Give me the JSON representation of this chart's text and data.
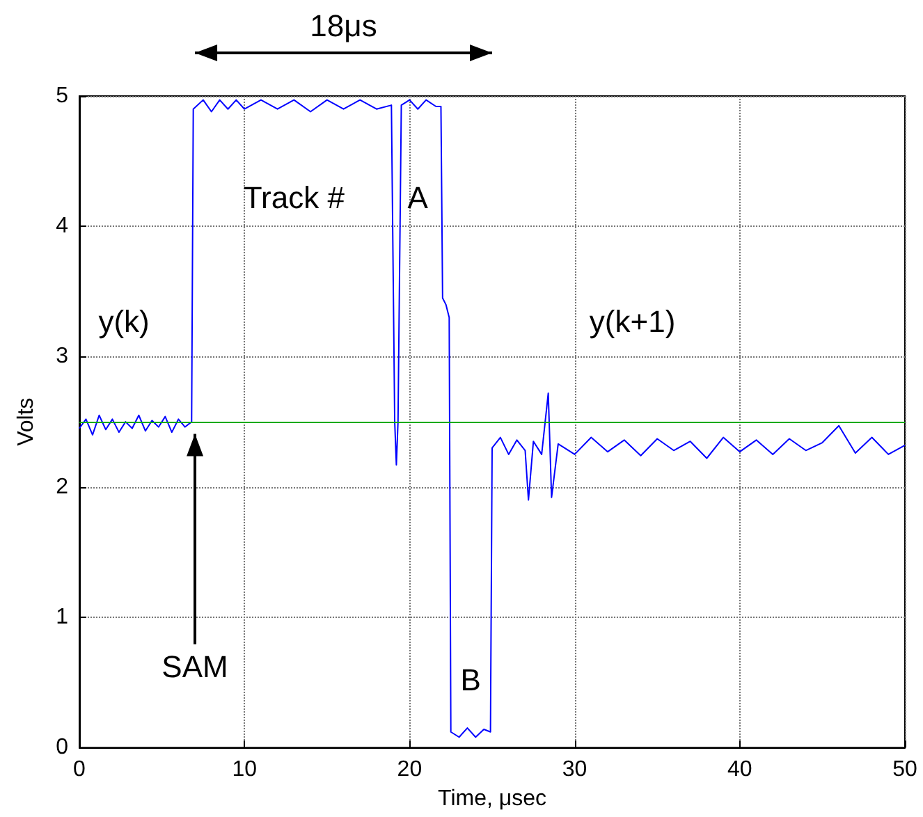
{
  "chart_data": {
    "type": "line",
    "xlabel": "Time, μsec",
    "ylabel": "Volts",
    "xlim": [
      0,
      50
    ],
    "xticks": [
      0,
      10,
      20,
      30,
      40,
      50
    ],
    "ylim": [
      0,
      5
    ],
    "yticks": [
      0,
      1,
      2,
      3,
      4,
      5
    ],
    "grid": true,
    "marker": "none",
    "line_style": "solid",
    "series": [
      {
        "color": "#0000ff",
        "x": [
          0,
          0.4,
          0.8,
          1.2,
          1.6,
          2.0,
          2.4,
          2.8,
          3.2,
          3.6,
          4.0,
          4.4,
          4.8,
          5.2,
          5.6,
          6.0,
          6.4,
          6.8,
          6.9,
          7.5,
          8,
          8.5,
          9,
          9.5,
          10,
          11,
          12,
          13,
          14,
          15,
          16,
          17,
          18,
          18.9,
          19.1,
          19.2,
          19.3,
          19.5,
          20,
          20.5,
          21,
          21.6,
          21.9,
          22,
          22.2,
          22.4,
          22.5,
          23,
          23.5,
          24,
          24.5,
          24.9,
          25,
          25.5,
          26,
          26.5,
          27,
          27.2,
          27.5,
          28,
          28.4,
          28.6,
          29,
          30,
          31,
          32,
          33,
          34,
          35,
          36,
          37,
          38,
          39,
          40,
          41,
          42,
          43,
          44,
          45,
          46,
          47,
          48,
          49,
          50
        ],
        "values": [
          2.45,
          2.52,
          2.4,
          2.55,
          2.44,
          2.52,
          2.42,
          2.5,
          2.45,
          2.55,
          2.43,
          2.51,
          2.46,
          2.54,
          2.42,
          2.52,
          2.46,
          2.5,
          4.9,
          4.97,
          4.88,
          4.97,
          4.9,
          4.97,
          4.9,
          4.97,
          4.9,
          4.97,
          4.88,
          4.97,
          4.9,
          4.97,
          4.9,
          4.93,
          2.5,
          2.17,
          2.5,
          4.93,
          4.97,
          4.9,
          4.97,
          4.92,
          4.92,
          3.45,
          3.4,
          3.3,
          0.12,
          0.08,
          0.15,
          0.08,
          0.14,
          0.12,
          2.3,
          2.38,
          2.25,
          2.36,
          2.28,
          1.9,
          2.35,
          2.25,
          2.72,
          1.92,
          2.33,
          2.25,
          2.38,
          2.27,
          2.36,
          2.24,
          2.37,
          2.28,
          2.35,
          2.22,
          2.38,
          2.27,
          2.36,
          2.25,
          2.37,
          2.28,
          2.34,
          2.47,
          2.26,
          2.38,
          2.25,
          2.32
        ]
      }
    ],
    "ref_lines": [
      {
        "axis": "y",
        "value": 2.5,
        "color": "#00aa00"
      }
    ],
    "annotations": [
      "18μs",
      "Track #",
      "A",
      "y(k)",
      "y(k+1)",
      "SAM",
      "B"
    ]
  }
}
